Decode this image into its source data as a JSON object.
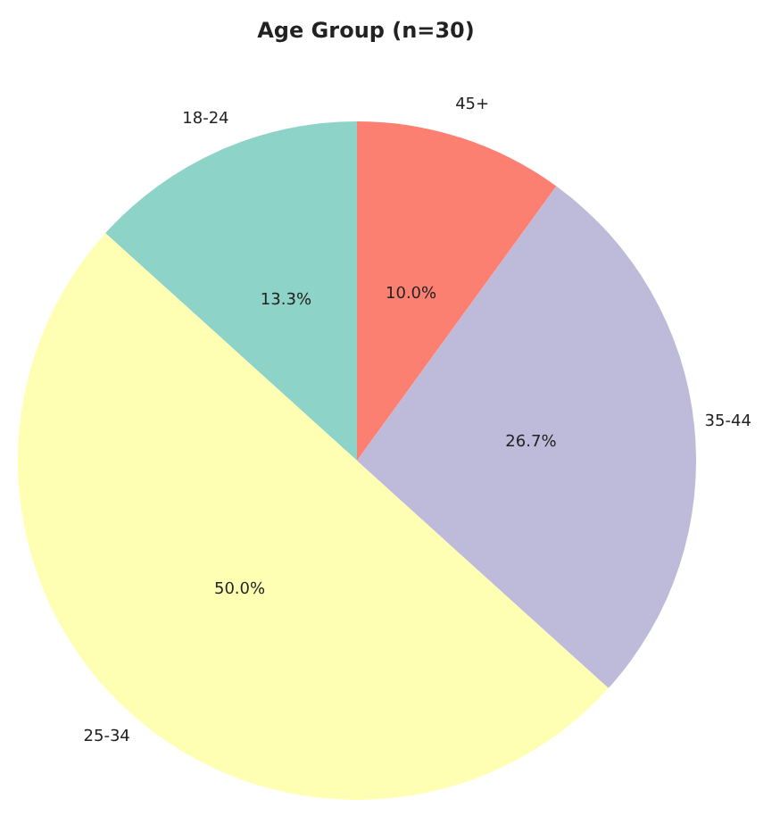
{
  "chart_data": {
    "type": "pie",
    "title": "Age Group (n=30)",
    "categories": [
      "18-24",
      "25-34",
      "35-44",
      "45+"
    ],
    "values": [
      13.3,
      50.0,
      26.7,
      10.0
    ],
    "colors": [
      "#8dd3c7",
      "#ffffb3",
      "#bebada",
      "#fb8072"
    ],
    "value_labels": [
      "13.3%",
      "50.0%",
      "26.7%",
      "10.0%"
    ],
    "legend": false
  }
}
